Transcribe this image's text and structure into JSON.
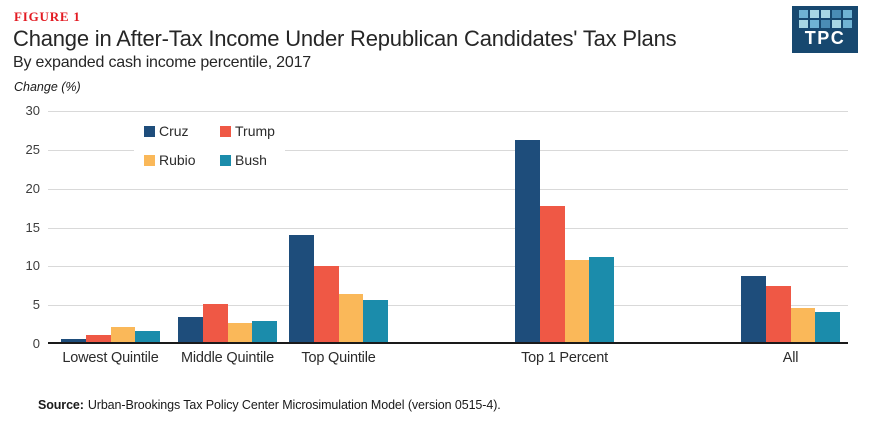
{
  "header": {
    "figure_label": "FIGURE 1",
    "title": "Change in After-Tax Income Under Republican Candidates' Tax Plans",
    "subtitle": "By expanded cash income percentile, 2017",
    "axis_unit": "Change (%)"
  },
  "logo": {
    "text": "TPC",
    "background": "#17486f",
    "mosaic_colors": [
      "#6fb3d4",
      "#a8d7e4",
      "#a8d7e4",
      "#4a8cb5",
      "#6fb3d4",
      "#a8d7e4",
      "#6fb3d4",
      "#4a8cb5",
      "#a8d7e4",
      "#6fb3d4"
    ]
  },
  "chart_data": {
    "type": "bar",
    "title": "Change in After-Tax Income Under Republican Candidates' Tax Plans",
    "subtitle": "By expanded cash income percentile, 2017",
    "xlabel": "",
    "ylabel": "Change (%)",
    "ylim": [
      0,
      30
    ],
    "yticks": [
      0,
      5,
      10,
      15,
      20,
      25,
      30
    ],
    "grid": "horizontal",
    "gridline_color": "#d9d9d9",
    "legend_position": "top-left-inside",
    "categories": [
      "Lowest Quintile",
      "Middle Quintile",
      "Top Quintile",
      "Top 1 Percent",
      "All"
    ],
    "series": [
      {
        "name": "Cruz",
        "color": "#1e4d7b",
        "values": [
          0.4,
          3.2,
          13.8,
          26.0,
          8.5
        ]
      },
      {
        "name": "Trump",
        "color": "#ef5845",
        "values": [
          0.9,
          4.9,
          9.8,
          17.5,
          7.2
        ]
      },
      {
        "name": "Rubio",
        "color": "#fab859",
        "values": [
          1.9,
          2.5,
          6.2,
          10.5,
          4.4
        ]
      },
      {
        "name": "Bush",
        "color": "#1b8cab",
        "values": [
          1.4,
          2.7,
          5.4,
          10.9,
          3.9
        ]
      }
    ]
  },
  "source": {
    "label": "Source:",
    "text": "Urban-Brookings Tax Policy Center Microsimulation Model (version 0515-4)."
  }
}
